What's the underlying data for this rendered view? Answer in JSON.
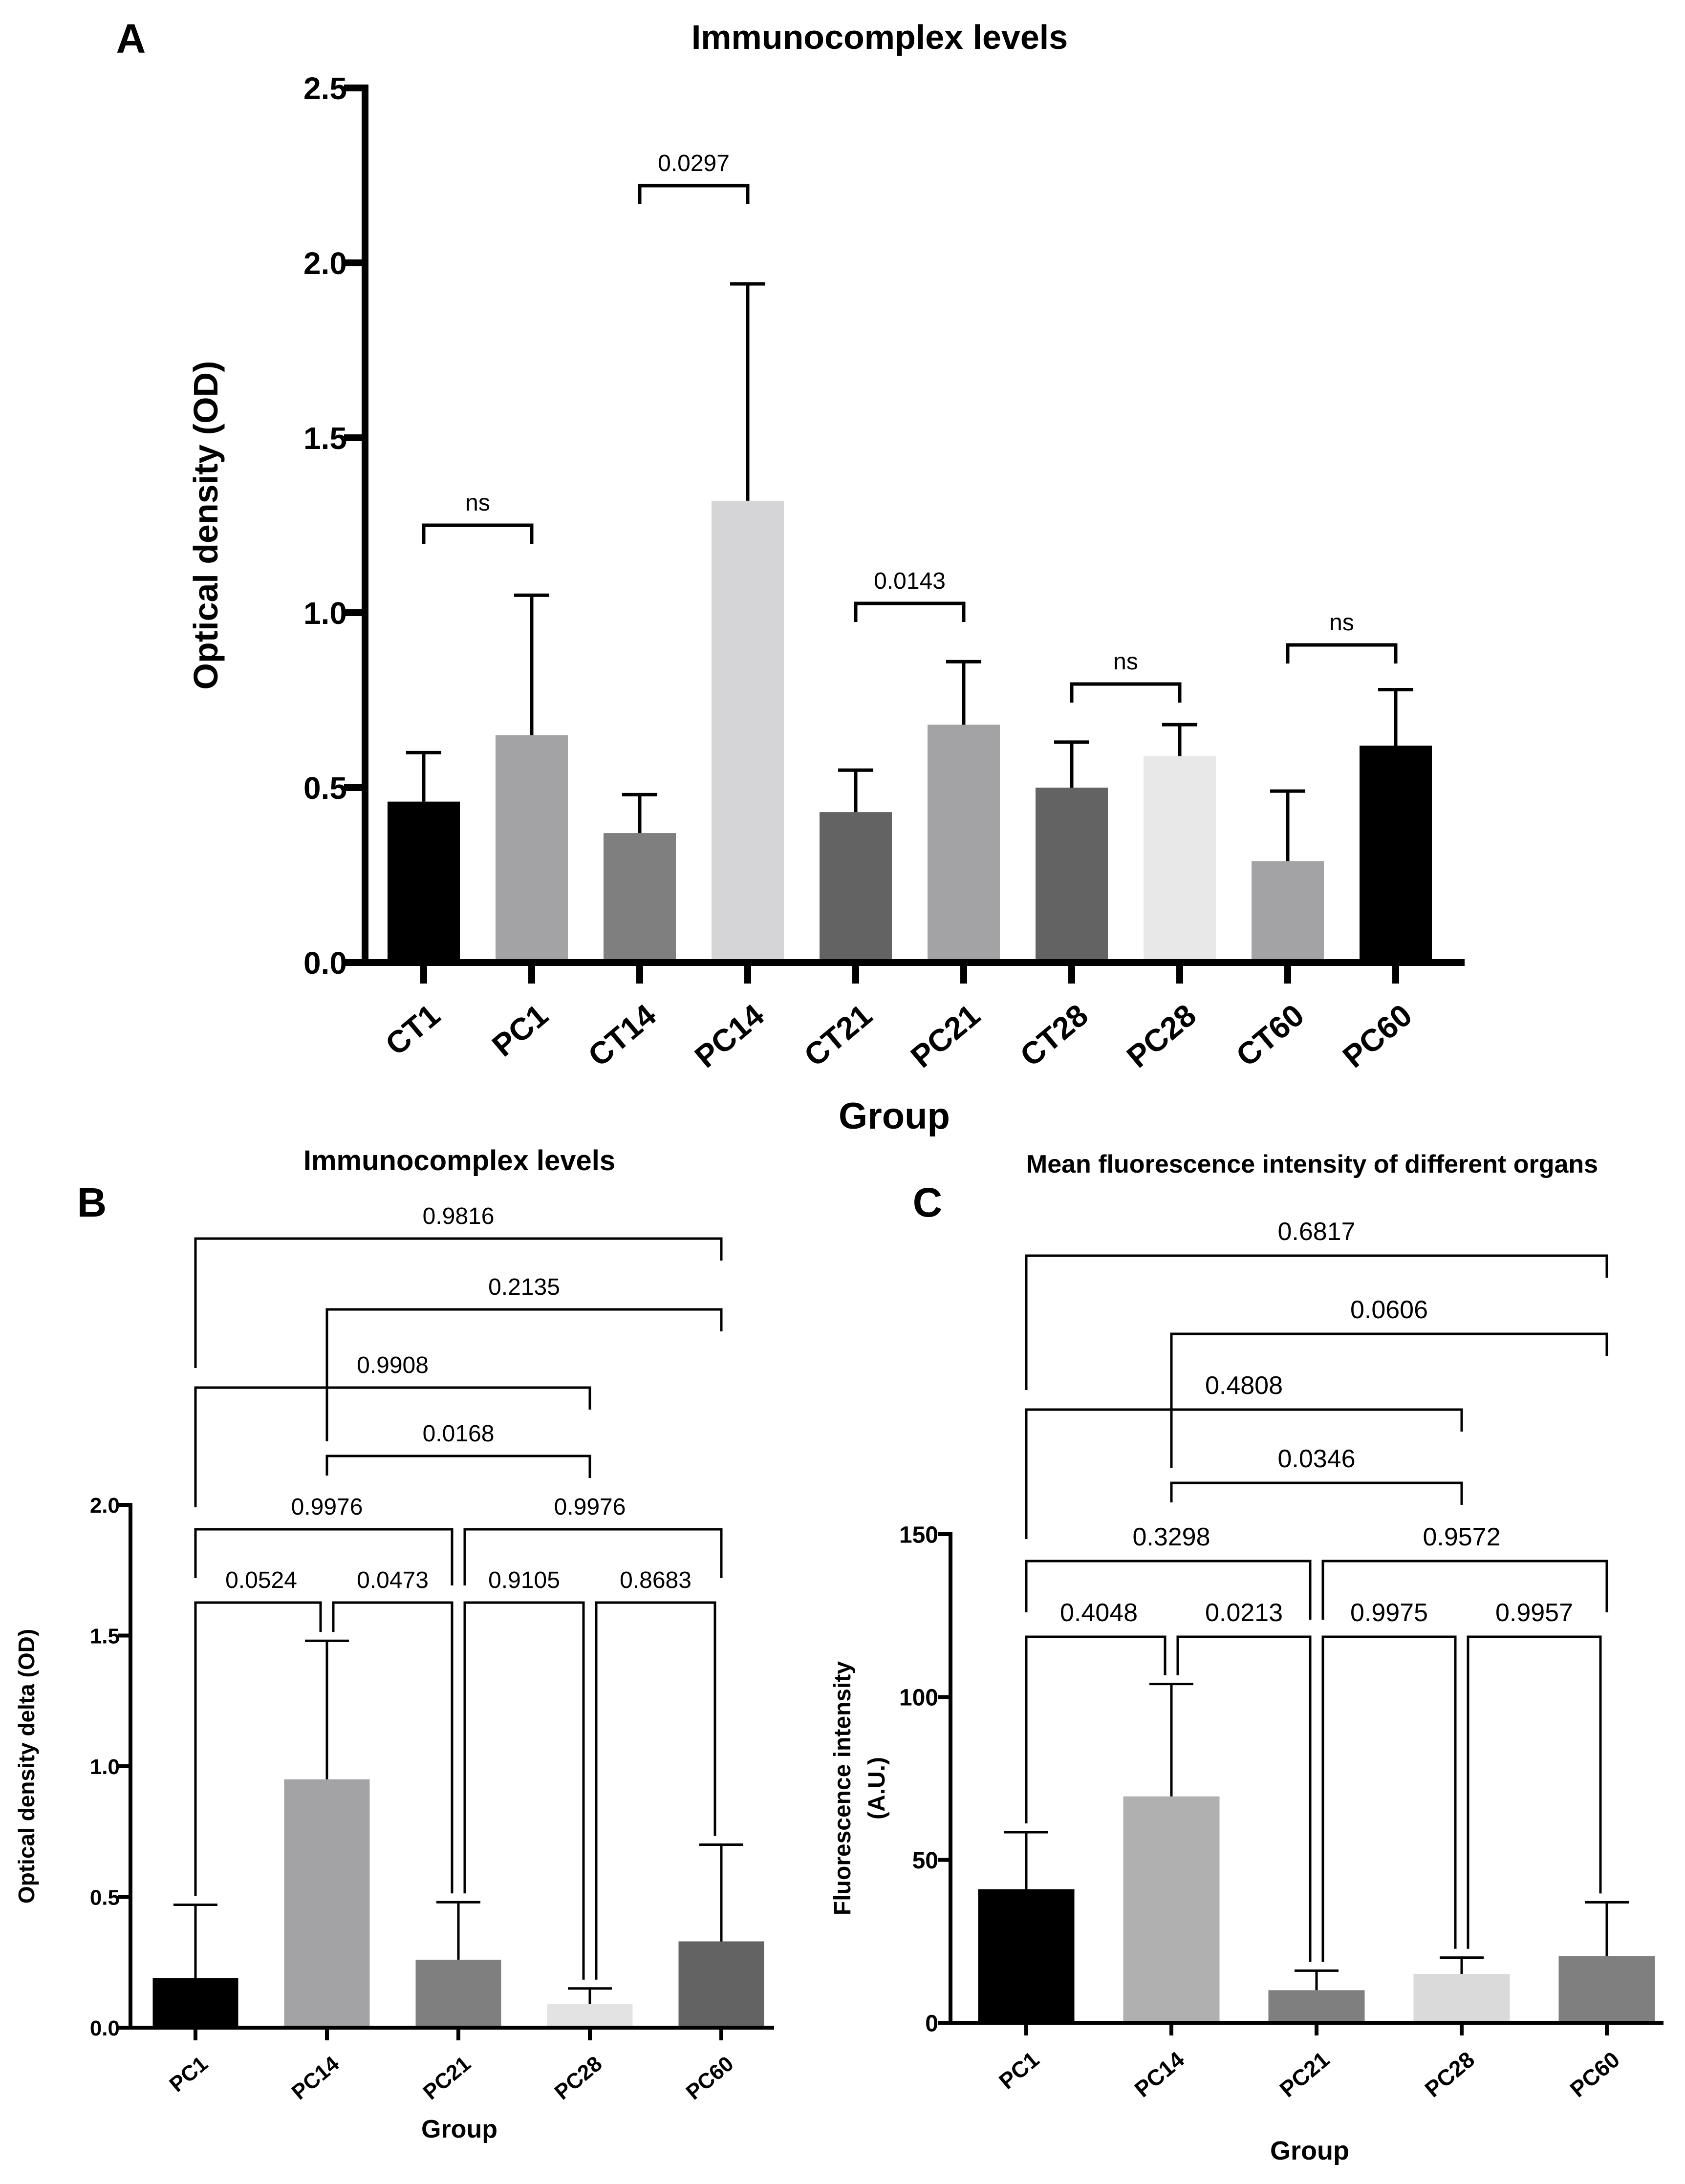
{
  "chart_data": [
    {
      "panel": "A",
      "type": "bar",
      "title": "Immunocomplex levels",
      "xlabel": "Group",
      "ylabel": "Optical density (OD)",
      "ylim": [
        0,
        2.5
      ],
      "yticks": [
        "0.0",
        "0.5",
        "1.0",
        "1.5",
        "2.0",
        "2.5"
      ],
      "categories": [
        "CT1",
        "PC1",
        "CT14",
        "PC14",
        "CT21",
        "PC21",
        "CT28",
        "PC28",
        "CT60",
        "PC60"
      ],
      "values": [
        0.46,
        0.65,
        0.37,
        1.32,
        0.43,
        0.68,
        0.5,
        0.59,
        0.29,
        0.62
      ],
      "errors": [
        0.14,
        0.4,
        0.11,
        0.62,
        0.12,
        0.18,
        0.13,
        0.09,
        0.2,
        0.16
      ],
      "colors": [
        "#000000",
        "#a3a3a6",
        "#7f7f7f",
        "#d5d5d7",
        "#636363",
        "#a3a3a6",
        "#636363",
        "#e8e8e9",
        "#a3a3a6",
        "#000000"
      ],
      "comparisons": [
        {
          "from": 0,
          "to": 1,
          "label": "ns"
        },
        {
          "from": 2,
          "to": 3,
          "label": "0.0297"
        },
        {
          "from": 4,
          "to": 5,
          "label": "0.0143"
        },
        {
          "from": 6,
          "to": 7,
          "label": "ns"
        },
        {
          "from": 8,
          "to": 9,
          "label": "ns"
        }
      ]
    },
    {
      "panel": "B",
      "type": "bar",
      "title": "Immunocomplex levels",
      "xlabel": "Group",
      "ylabel": "Optical density delta (OD)",
      "ylim": [
        0,
        2.0
      ],
      "yticks": [
        "0.0",
        "0.5",
        "1.0",
        "1.5",
        "2.0"
      ],
      "categories": [
        "PC1",
        "PC14",
        "PC21",
        "PC28",
        "PC60"
      ],
      "values": [
        0.19,
        0.95,
        0.26,
        0.09,
        0.33
      ],
      "errors": [
        0.28,
        0.53,
        0.22,
        0.06,
        0.37
      ],
      "colors": [
        "#000000",
        "#a3a3a6",
        "#7f7f7f",
        "#e3e3e4",
        "#636363"
      ],
      "comparisons": [
        {
          "from": 0,
          "to": 1,
          "label": "0.0524"
        },
        {
          "from": 1,
          "to": 2,
          "label": "0.0473"
        },
        {
          "from": 2,
          "to": 3,
          "label": "0.9105"
        },
        {
          "from": 3,
          "to": 4,
          "label": "0.8683"
        },
        {
          "from": 0,
          "to": 2,
          "label": "0.9976"
        },
        {
          "from": 2,
          "to": 4,
          "label": "0.9976"
        },
        {
          "from": 1,
          "to": 3,
          "label": "0.0168"
        },
        {
          "from": 0,
          "to": 3,
          "label": "0.9908"
        },
        {
          "from": 1,
          "to": 4,
          "label": "0.2135"
        },
        {
          "from": 0,
          "to": 4,
          "label": "0.9816"
        }
      ]
    },
    {
      "panel": "C",
      "type": "bar",
      "title": "Mean fluorescence intensity of different organs",
      "xlabel": "Group",
      "ylabel": "Fluorescence intensity",
      "ylabel2": "(A.U.)",
      "ylim": [
        0,
        150
      ],
      "yticks": [
        "0",
        "50",
        "100",
        "150"
      ],
      "categories": [
        "PC1",
        "PC14",
        "PC21",
        "PC28",
        "PC60"
      ],
      "values": [
        41,
        69.5,
        10,
        15,
        20.5
      ],
      "errors": [
        17.5,
        34.5,
        6,
        5,
        16.5
      ],
      "colors": [
        "#000000",
        "#b0b0b1",
        "#7f7f7f",
        "#dadadb",
        "#7f7f7f"
      ],
      "comparisons": [
        {
          "from": 0,
          "to": 1,
          "label": "0.4048"
        },
        {
          "from": 1,
          "to": 2,
          "label": "0.0213"
        },
        {
          "from": 2,
          "to": 3,
          "label": "0.9975"
        },
        {
          "from": 3,
          "to": 4,
          "label": "0.9957"
        },
        {
          "from": 0,
          "to": 2,
          "label": "0.3298"
        },
        {
          "from": 2,
          "to": 4,
          "label": "0.9572"
        },
        {
          "from": 1,
          "to": 3,
          "label": "0.0346"
        },
        {
          "from": 0,
          "to": 3,
          "label": "0.4808"
        },
        {
          "from": 1,
          "to": 4,
          "label": "0.0606"
        },
        {
          "from": 0,
          "to": 4,
          "label": "0.6817"
        }
      ]
    }
  ]
}
